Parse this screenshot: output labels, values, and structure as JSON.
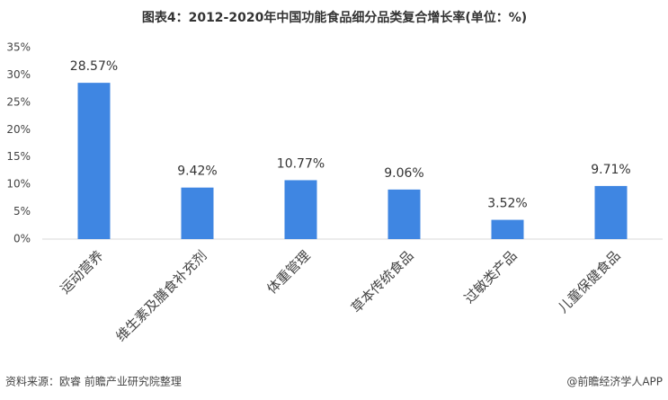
{
  "chart_data": {
    "type": "bar",
    "title": "图表4：2012-2020年中国功能食品细分品类复合增长率(单位：%)",
    "categories": [
      "运动营养",
      "维生素及膳食补充剂",
      "体重管理",
      "草本传统食品",
      "过敏类产品",
      "儿童保健食品"
    ],
    "values": [
      28.57,
      9.42,
      10.77,
      9.06,
      3.52,
      9.71
    ],
    "value_labels": [
      "28.57%",
      "9.42%",
      "10.77%",
      "9.06%",
      "3.52%",
      "9.71%"
    ],
    "color": "#3f86e2",
    "ylim": [
      0,
      35
    ],
    "yticks": [
      {
        "value": 0,
        "label": "0%"
      },
      {
        "value": 5,
        "label": "5%"
      },
      {
        "value": 10,
        "label": "10%"
      },
      {
        "value": 15,
        "label": "15%"
      },
      {
        "value": 20,
        "label": "20%"
      },
      {
        "value": 25,
        "label": "25%"
      },
      {
        "value": 30,
        "label": "30%"
      },
      {
        "value": 35,
        "label": "35%"
      }
    ],
    "source": "资料来源：欧睿 前瞻产业研究院整理",
    "credit": "@前瞻经济学人APP"
  }
}
